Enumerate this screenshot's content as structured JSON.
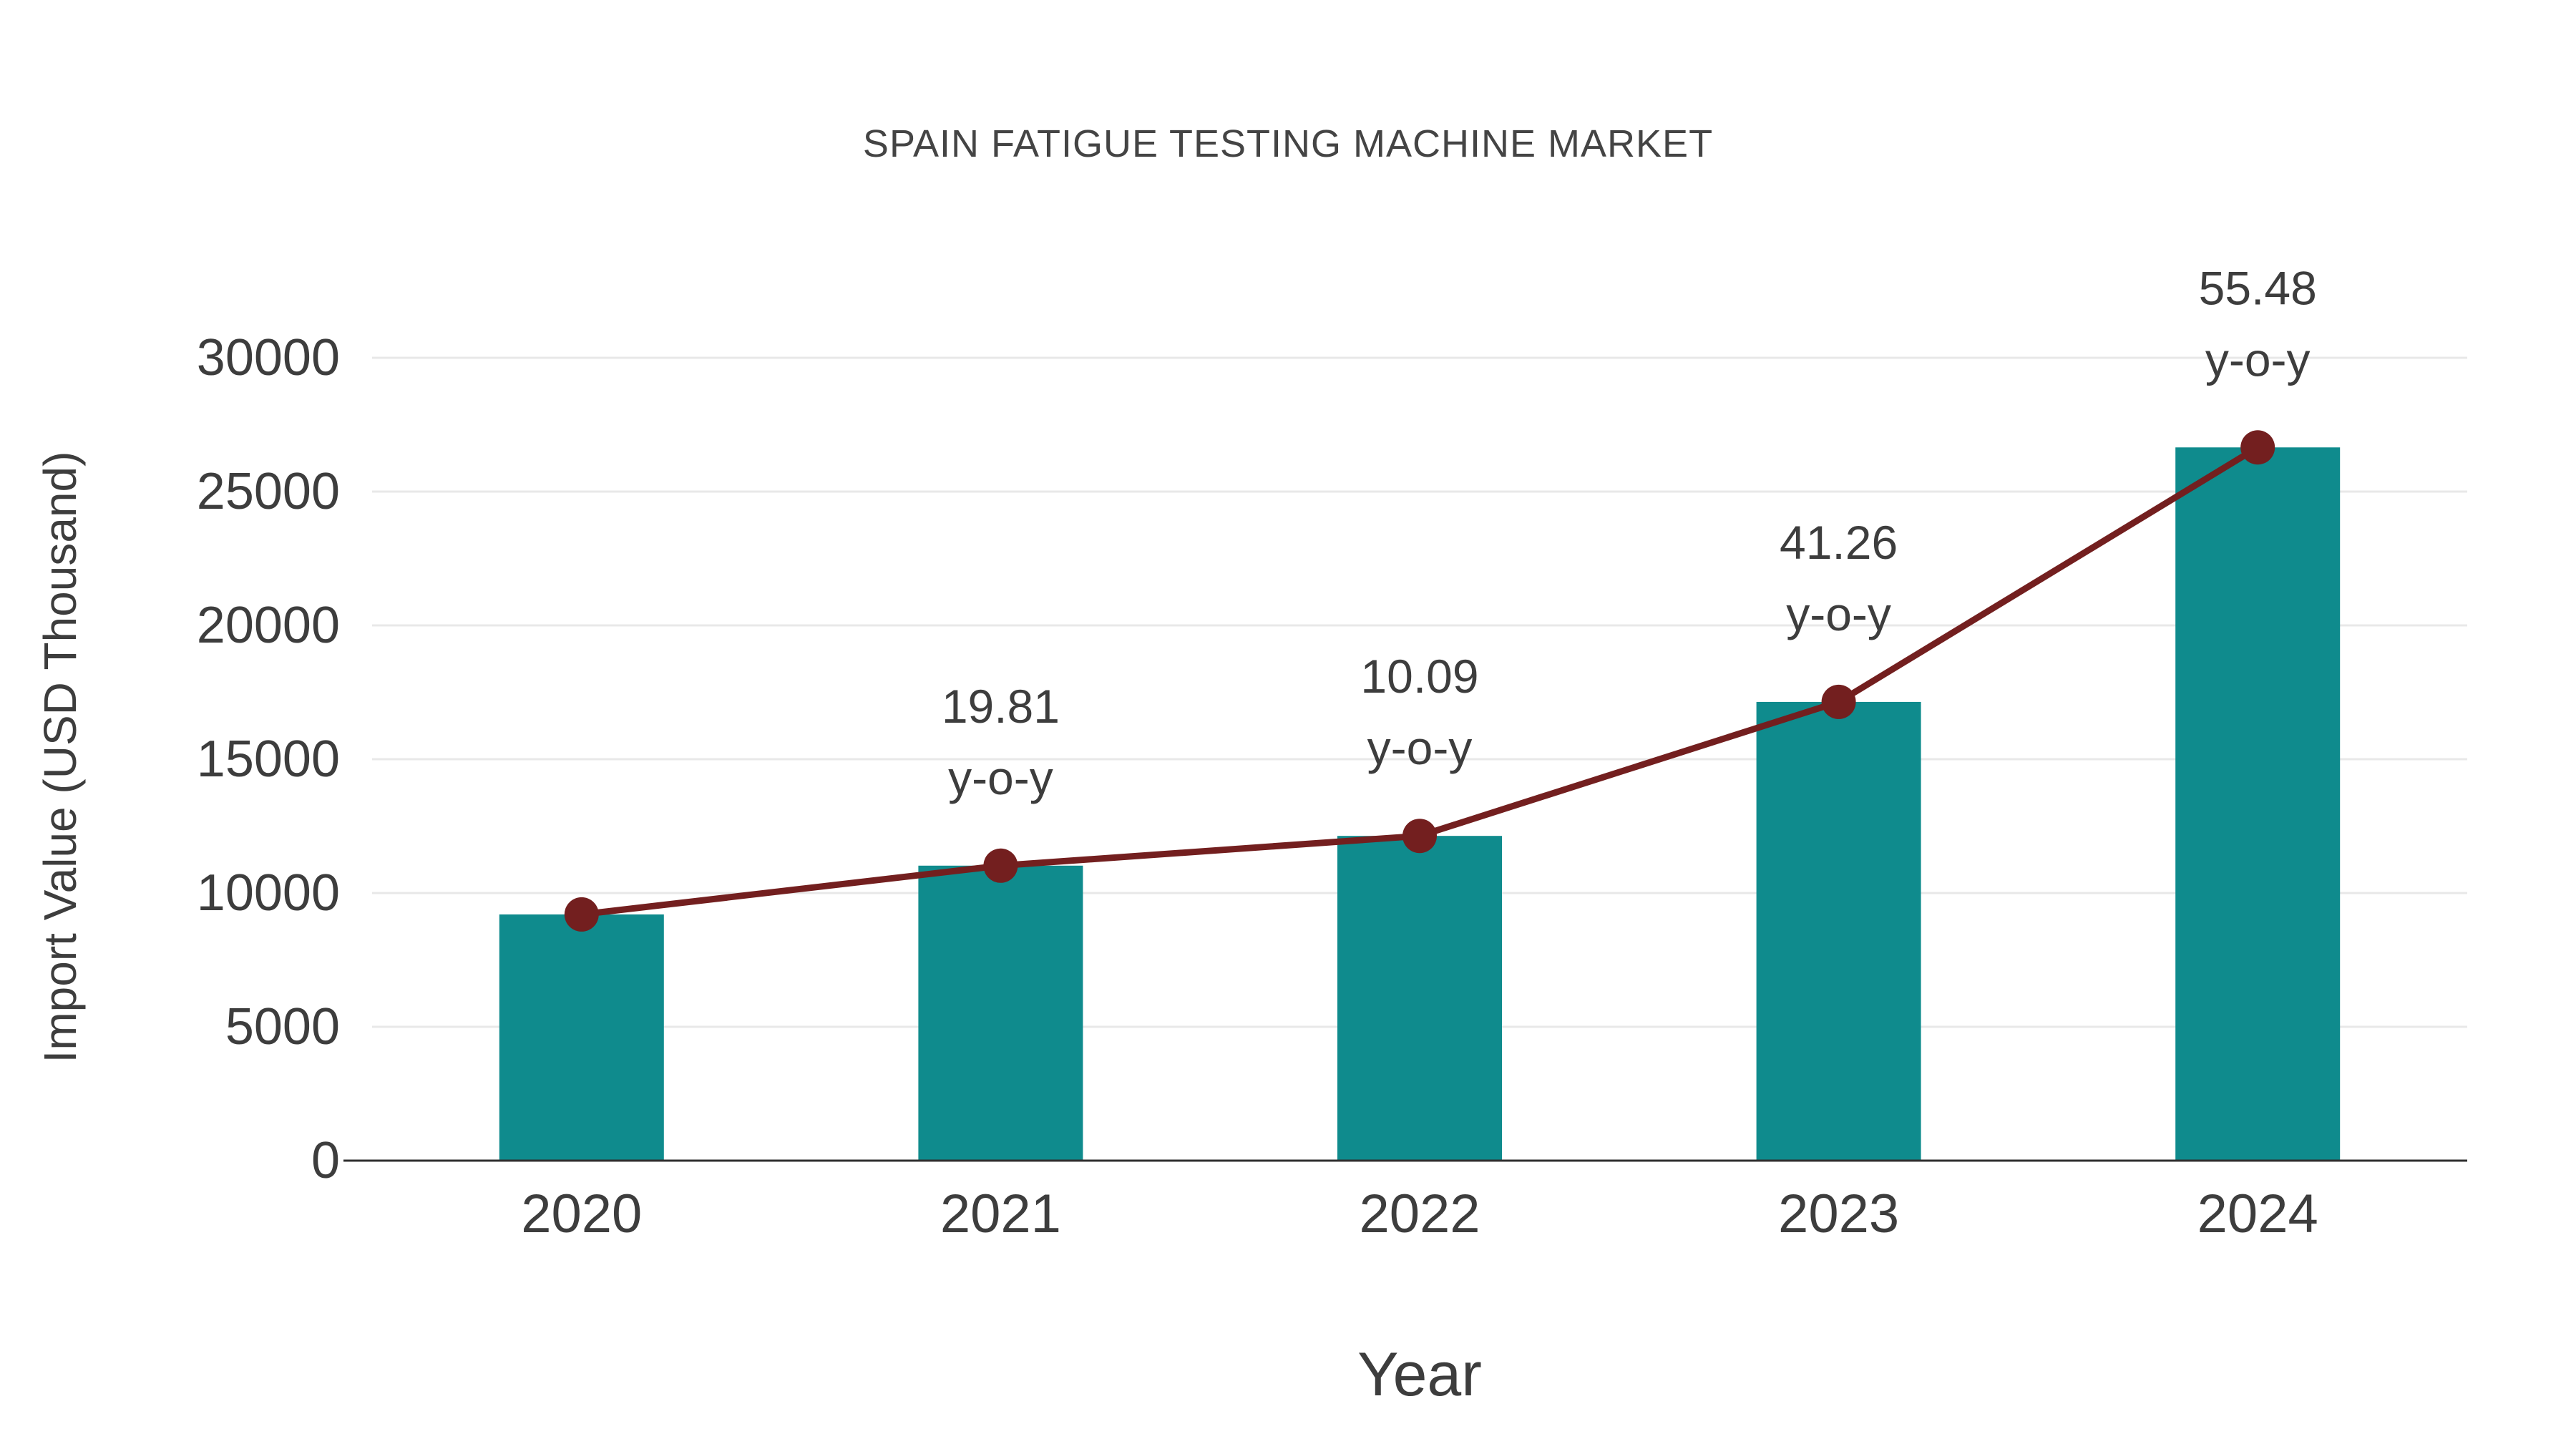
{
  "chart_data": {
    "type": "bar",
    "title": "SPAIN FATIGUE TESTING MACHINE MARKET",
    "xlabel": "Year",
    "ylabel": "Import Value (USD Thousand)",
    "categories": [
      "2020",
      "2021",
      "2022",
      "2023",
      "2024"
    ],
    "series": [
      {
        "name": "Import Value (bar)",
        "type": "bar",
        "values": [
          9200,
          11022,
          12134,
          17141,
          26651
        ],
        "color": "#0f8b8d"
      },
      {
        "name": "Import Value (trend line)",
        "type": "line",
        "values": [
          9200,
          11022,
          12134,
          17141,
          26651
        ],
        "color": "#731f1f"
      }
    ],
    "annotations": [
      {
        "category": "2021",
        "lines": [
          "19.81",
          "y-o-y"
        ]
      },
      {
        "category": "2022",
        "lines": [
          "10.09",
          "y-o-y"
        ]
      },
      {
        "category": "2023",
        "lines": [
          "41.26",
          "y-o-y"
        ]
      },
      {
        "category": "2024",
        "lines": [
          "55.48",
          "y-o-y"
        ]
      }
    ],
    "yticks": [
      0,
      5000,
      10000,
      15000,
      20000,
      25000,
      30000
    ],
    "ylim": [
      0,
      30000
    ],
    "grid": true,
    "legend": false,
    "colors": {
      "bar": "#0f8b8d",
      "line": "#731f1f",
      "marker": "#731f1f",
      "grid": "#e8e8e8",
      "axis": "#2f2f2f",
      "text": "#3d3d3d"
    }
  }
}
